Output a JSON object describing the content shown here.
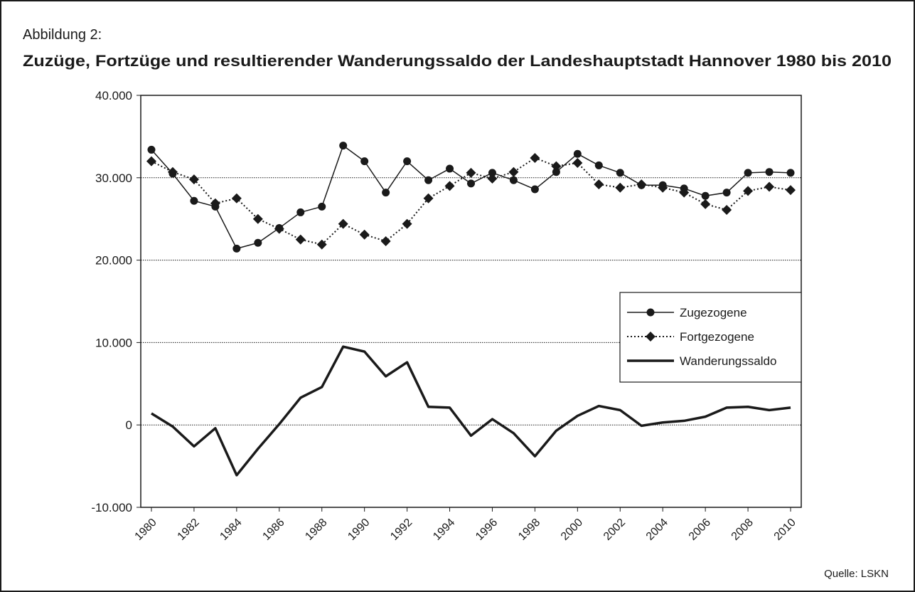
{
  "chart_data": {
    "type": "line",
    "label": "Abbildung 2:",
    "title": "Zuzüge, Fortzüge und resultierender Wanderungssaldo der Landeshauptstadt Hannover 1980 bis 2010",
    "source": "Quelle: LSKN",
    "x": [
      1980,
      1981,
      1982,
      1983,
      1984,
      1985,
      1986,
      1987,
      1988,
      1989,
      1990,
      1991,
      1992,
      1993,
      1994,
      1995,
      1996,
      1997,
      1998,
      1999,
      2000,
      2001,
      2002,
      2003,
      2004,
      2005,
      2006,
      2007,
      2008,
      2009,
      2010
    ],
    "series": [
      {
        "name": "Zugezogene",
        "color": "#1a1a1a",
        "linestyle": "solid",
        "marker": "circle",
        "values": [
          33400,
          30500,
          27200,
          26500,
          21400,
          22100,
          23900,
          25800,
          26500,
          33900,
          32000,
          28200,
          32000,
          29700,
          31100,
          29300,
          30600,
          29700,
          28600,
          30700,
          32900,
          31500,
          30600,
          29100,
          29100,
          28700,
          27800,
          28200,
          30600,
          30700,
          30600
        ]
      },
      {
        "name": "Fortgezogene",
        "color": "#1a1a1a",
        "linestyle": "dotted",
        "marker": "diamond",
        "values": [
          32000,
          30700,
          29800,
          26900,
          27500,
          25000,
          23800,
          22500,
          21900,
          24400,
          23100,
          22300,
          24400,
          27500,
          29000,
          30600,
          29900,
          30700,
          32400,
          31400,
          31800,
          29200,
          28800,
          29200,
          28800,
          28200,
          26800,
          26100,
          28400,
          28900,
          28500
        ]
      },
      {
        "name": "Wanderungssaldo",
        "color": "#1a1a1a",
        "linestyle": "thick",
        "marker": "none",
        "values": [
          1400,
          -200,
          -2600,
          -400,
          -6100,
          -2900,
          100,
          3300,
          4600,
          9500,
          8900,
          5900,
          7600,
          2200,
          2100,
          -1300,
          700,
          -1000,
          -3800,
          -700,
          1100,
          2300,
          1800,
          -100,
          300,
          500,
          1000,
          2100,
          2200,
          1800,
          2100
        ]
      }
    ],
    "xlim": [
      1979.5,
      2010.5
    ],
    "xticks": [
      1980,
      1982,
      1984,
      1986,
      1988,
      1990,
      1992,
      1994,
      1996,
      1998,
      2000,
      2002,
      2004,
      2006,
      2008,
      2010
    ],
    "ylim": [
      -10000,
      40000
    ],
    "yticks": [
      {
        "value": -10000,
        "label": "-10.000"
      },
      0,
      {
        "value": 10000,
        "label": "10.000"
      },
      {
        "value": 20000,
        "label": "20.000"
      },
      {
        "value": 30000,
        "label": "30.000"
      },
      {
        "value": 40000,
        "label": "40.000"
      }
    ],
    "grid": true,
    "legend": "right"
  }
}
